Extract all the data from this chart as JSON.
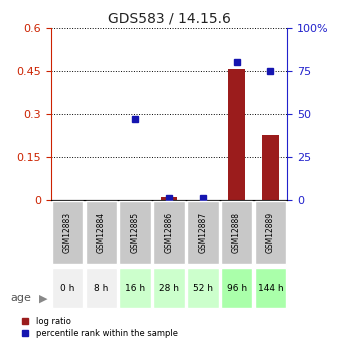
{
  "title": "GDS583 / 14.15.6",
  "samples": [
    "GSM12883",
    "GSM12884",
    "GSM12885",
    "GSM12886",
    "GSM12887",
    "GSM12888",
    "GSM12889"
  ],
  "ages": [
    "0 h",
    "8 h",
    "16 h",
    "28 h",
    "52 h",
    "96 h",
    "144 h"
  ],
  "log_ratio": [
    0.0,
    0.0,
    0.0,
    0.012,
    0.0,
    0.455,
    0.225
  ],
  "percentile": [
    null,
    null,
    47,
    1.5,
    1.5,
    80,
    75
  ],
  "ylim_left": [
    0,
    0.6
  ],
  "ylim_right": [
    0,
    100
  ],
  "yticks_left": [
    0,
    0.15,
    0.3,
    0.45,
    0.6
  ],
  "ytick_labels_left": [
    "0",
    "0.15",
    "0.3",
    "0.45",
    "0.6"
  ],
  "yticks_right": [
    0,
    25,
    50,
    75,
    100
  ],
  "ytick_labels_right": [
    "0",
    "25",
    "50",
    "75",
    "100%"
  ],
  "bar_color": "#9B1C1C",
  "dot_color": "#1515B0",
  "bg_gray": "#C8C8C8",
  "age_bg": [
    "#F0F0F0",
    "#F0F0F0",
    "#CCFFCC",
    "#CCFFCC",
    "#CCFFCC",
    "#AAFFAA",
    "#AAFFAA"
  ],
  "title_color": "#222222",
  "left_axis_color": "#CC2200",
  "right_axis_color": "#2222CC",
  "figsize": [
    3.38,
    3.45
  ],
  "dpi": 100
}
